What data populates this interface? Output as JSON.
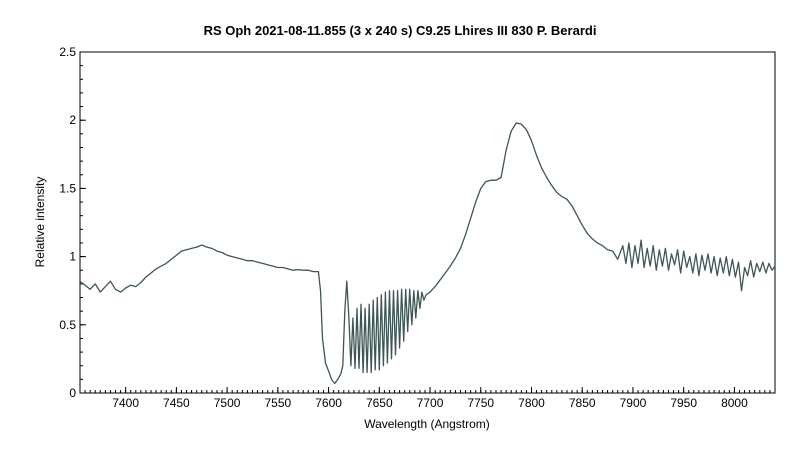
{
  "chart_data": {
    "type": "line",
    "title": "RS Oph  2021-08-11.855  (3 x 240 s)  C9.25  Lhires III 830  P. Berardi",
    "xlabel": "Wavelength (Angstrom)",
    "ylabel": "Relative intensity",
    "xlim": [
      7355,
      8040
    ],
    "ylim": [
      0,
      2.5
    ],
    "x_ticks": [
      7400,
      7450,
      7500,
      7550,
      7600,
      7650,
      7700,
      7750,
      7800,
      7850,
      7900,
      7950,
      8000
    ],
    "x_tick_labels": [
      "7400",
      "7450",
      "7500",
      "7550",
      "7600",
      "7650",
      "7700",
      "7750",
      "7800",
      "7850",
      "7900",
      "7950",
      "8000"
    ],
    "y_ticks": [
      0,
      0.5,
      1,
      1.5,
      2,
      2.5
    ],
    "y_tick_labels": [
      "0",
      "0.5",
      "1",
      "1.5",
      "2",
      "2.5"
    ],
    "x_minor_step": 5,
    "y_minor_step": 0.1,
    "grid": false,
    "line_color": "#3f5655",
    "series": [
      {
        "values": [
          [
            7355,
            0.82
          ],
          [
            7360,
            0.79
          ],
          [
            7365,
            0.76
          ],
          [
            7370,
            0.8
          ],
          [
            7375,
            0.74
          ],
          [
            7380,
            0.78
          ],
          [
            7385,
            0.82
          ],
          [
            7390,
            0.76
          ],
          [
            7395,
            0.74
          ],
          [
            7400,
            0.77
          ],
          [
            7405,
            0.79
          ],
          [
            7410,
            0.78
          ],
          [
            7415,
            0.81
          ],
          [
            7420,
            0.85
          ],
          [
            7425,
            0.88
          ],
          [
            7430,
            0.91
          ],
          [
            7435,
            0.93
          ],
          [
            7440,
            0.95
          ],
          [
            7445,
            0.98
          ],
          [
            7450,
            1.01
          ],
          [
            7455,
            1.04
          ],
          [
            7460,
            1.05
          ],
          [
            7465,
            1.06
          ],
          [
            7470,
            1.07
          ],
          [
            7475,
            1.085
          ],
          [
            7480,
            1.07
          ],
          [
            7485,
            1.06
          ],
          [
            7490,
            1.04
          ],
          [
            7495,
            1.03
          ],
          [
            7500,
            1.01
          ],
          [
            7505,
            1.0
          ],
          [
            7510,
            0.99
          ],
          [
            7515,
            0.98
          ],
          [
            7520,
            0.97
          ],
          [
            7525,
            0.97
          ],
          [
            7530,
            0.96
          ],
          [
            7535,
            0.95
          ],
          [
            7540,
            0.94
          ],
          [
            7545,
            0.93
          ],
          [
            7550,
            0.92
          ],
          [
            7555,
            0.92
          ],
          [
            7560,
            0.91
          ],
          [
            7565,
            0.9
          ],
          [
            7570,
            0.905
          ],
          [
            7575,
            0.9
          ],
          [
            7580,
            0.9
          ],
          [
            7585,
            0.89
          ],
          [
            7590,
            0.89
          ],
          [
            7592,
            0.75
          ],
          [
            7594,
            0.4
          ],
          [
            7597,
            0.22
          ],
          [
            7600,
            0.16
          ],
          [
            7603,
            0.1
          ],
          [
            7606,
            0.07
          ],
          [
            7609,
            0.1
          ],
          [
            7612,
            0.14
          ],
          [
            7614,
            0.2
          ],
          [
            7616,
            0.6
          ],
          [
            7618,
            0.82
          ],
          [
            7620,
            0.55
          ],
          [
            7622,
            0.2
          ],
          [
            7624,
            0.55
          ],
          [
            7626,
            0.18
          ],
          [
            7628,
            0.62
          ],
          [
            7630,
            0.18
          ],
          [
            7632,
            0.65
          ],
          [
            7634,
            0.15
          ],
          [
            7636,
            0.62
          ],
          [
            7638,
            0.15
          ],
          [
            7640,
            0.65
          ],
          [
            7642,
            0.15
          ],
          [
            7644,
            0.68
          ],
          [
            7646,
            0.17
          ],
          [
            7648,
            0.7
          ],
          [
            7650,
            0.17
          ],
          [
            7652,
            0.72
          ],
          [
            7654,
            0.2
          ],
          [
            7656,
            0.74
          ],
          [
            7658,
            0.22
          ],
          [
            7660,
            0.75
          ],
          [
            7662,
            0.25
          ],
          [
            7664,
            0.75
          ],
          [
            7666,
            0.28
          ],
          [
            7668,
            0.75
          ],
          [
            7670,
            0.33
          ],
          [
            7672,
            0.76
          ],
          [
            7674,
            0.38
          ],
          [
            7676,
            0.76
          ],
          [
            7678,
            0.45
          ],
          [
            7680,
            0.76
          ],
          [
            7682,
            0.5
          ],
          [
            7684,
            0.75
          ],
          [
            7686,
            0.55
          ],
          [
            7688,
            0.75
          ],
          [
            7690,
            0.62
          ],
          [
            7692,
            0.74
          ],
          [
            7694,
            0.68
          ],
          [
            7696,
            0.72
          ],
          [
            7700,
            0.74
          ],
          [
            7705,
            0.78
          ],
          [
            7710,
            0.83
          ],
          [
            7715,
            0.88
          ],
          [
            7720,
            0.93
          ],
          [
            7725,
            0.99
          ],
          [
            7730,
            1.06
          ],
          [
            7735,
            1.16
          ],
          [
            7740,
            1.28
          ],
          [
            7745,
            1.4
          ],
          [
            7750,
            1.5
          ],
          [
            7755,
            1.55
          ],
          [
            7760,
            1.56
          ],
          [
            7765,
            1.56
          ],
          [
            7770,
            1.58
          ],
          [
            7775,
            1.78
          ],
          [
            7780,
            1.92
          ],
          [
            7785,
            1.98
          ],
          [
            7790,
            1.97
          ],
          [
            7795,
            1.93
          ],
          [
            7800,
            1.85
          ],
          [
            7805,
            1.74
          ],
          [
            7810,
            1.65
          ],
          [
            7815,
            1.58
          ],
          [
            7820,
            1.52
          ],
          [
            7825,
            1.47
          ],
          [
            7830,
            1.44
          ],
          [
            7835,
            1.42
          ],
          [
            7840,
            1.37
          ],
          [
            7845,
            1.3
          ],
          [
            7850,
            1.23
          ],
          [
            7855,
            1.17
          ],
          [
            7860,
            1.13
          ],
          [
            7865,
            1.1
          ],
          [
            7870,
            1.08
          ],
          [
            7875,
            1.05
          ],
          [
            7880,
            1.04
          ],
          [
            7885,
            0.98
          ],
          [
            7890,
            1.08
          ],
          [
            7893,
            0.95
          ],
          [
            7896,
            1.1
          ],
          [
            7899,
            0.92
          ],
          [
            7902,
            1.08
          ],
          [
            7905,
            0.95
          ],
          [
            7908,
            1.12
          ],
          [
            7911,
            0.92
          ],
          [
            7914,
            1.06
          ],
          [
            7917,
            0.93
          ],
          [
            7920,
            1.08
          ],
          [
            7923,
            0.9
          ],
          [
            7926,
            1.05
          ],
          [
            7929,
            0.93
          ],
          [
            7932,
            1.06
          ],
          [
            7935,
            0.9
          ],
          [
            7938,
            1.02
          ],
          [
            7941,
            0.94
          ],
          [
            7944,
            1.05
          ],
          [
            7947,
            0.88
          ],
          [
            7950,
            1.04
          ],
          [
            7953,
            0.92
          ],
          [
            7956,
            1.0
          ],
          [
            7959,
            0.88
          ],
          [
            7962,
            1.02
          ],
          [
            7965,
            0.86
          ],
          [
            7968,
            1.01
          ],
          [
            7971,
            0.9
          ],
          [
            7974,
            1.02
          ],
          [
            7977,
            0.88
          ],
          [
            7980,
            1.0
          ],
          [
            7983,
            0.86
          ],
          [
            7986,
            0.99
          ],
          [
            7989,
            0.88
          ],
          [
            7992,
            1.0
          ],
          [
            7995,
            0.86
          ],
          [
            7998,
            0.98
          ],
          [
            8001,
            0.85
          ],
          [
            8004,
            0.96
          ],
          [
            8007,
            0.75
          ],
          [
            8010,
            0.92
          ],
          [
            8013,
            0.86
          ],
          [
            8016,
            0.97
          ],
          [
            8019,
            0.85
          ],
          [
            8022,
            0.95
          ],
          [
            8025,
            0.89
          ],
          [
            8028,
            0.96
          ],
          [
            8031,
            0.88
          ],
          [
            8034,
            0.95
          ],
          [
            8037,
            0.9
          ],
          [
            8040,
            0.93
          ]
        ]
      }
    ]
  }
}
